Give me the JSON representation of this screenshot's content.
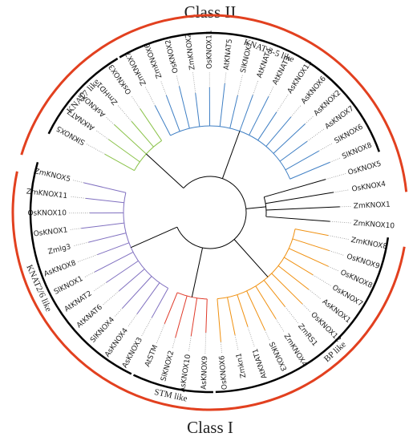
{
  "classes": [
    {
      "label": "Class II"
    },
    {
      "label": "Class I"
    }
  ],
  "clades": [
    {
      "label": "KNAT7 like",
      "color": "#8bc34a",
      "leaves": [
        "SlKNOX5",
        "AtKNAT7",
        "AsKNOX5",
        "ZmHD1",
        "OsKNOX3"
      ]
    },
    {
      "label": "KNAT 3-5 like",
      "color": "#3f7fc4",
      "leaves": [
        "ZmKNOX7",
        "ZmKNOX6",
        "OsKNOX2",
        "ZmKNOX2",
        "OsKNOX11",
        "AtKNAT5",
        "SlKNOX7",
        "AtKNAT4",
        "AtKNAT3",
        "AsKNOX13",
        "AsKNOX6",
        "AsKNOX2",
        "AsKNOX7",
        "SlKNOX6",
        "SlKNOX8"
      ]
    },
    {
      "color": "#000000",
      "leaves": [
        "OsKNOX5",
        "OsKNOX4",
        "ZmKNOX1",
        "ZmKNOX10"
      ]
    },
    {
      "label": "BP like",
      "color": "#f0900f",
      "leaves": [
        "ZmKNOX8",
        "OsKNOX9",
        "OsKNOX8",
        "OsKNOX7",
        "AsKNOX1",
        "OsKNOX12",
        "ZmRS1",
        "ZmKNOX4",
        "SlKNOX3",
        "AtKNAT1",
        "Zmkn1",
        "OsKNOX6"
      ]
    },
    {
      "label": "STM like",
      "color": "#e03a2a",
      "leaves": [
        "AsKNOX9",
        "AsKNOX10",
        "SlKNOX2",
        "AtSTM"
      ]
    },
    {
      "label": "KNAT2/6 like",
      "color": "#8070c0",
      "leaves": [
        "AsKNOX3",
        "AsKNOX4",
        "SlKNOX4",
        "AtKNAT6",
        "AtKNAT2",
        "SlKNOX1",
        "AsKNOX8",
        "Zmlg3",
        "OsKNOX1",
        "OsKNOX10",
        "ZmKNOX11",
        "ZmKNOX5"
      ]
    }
  ]
}
